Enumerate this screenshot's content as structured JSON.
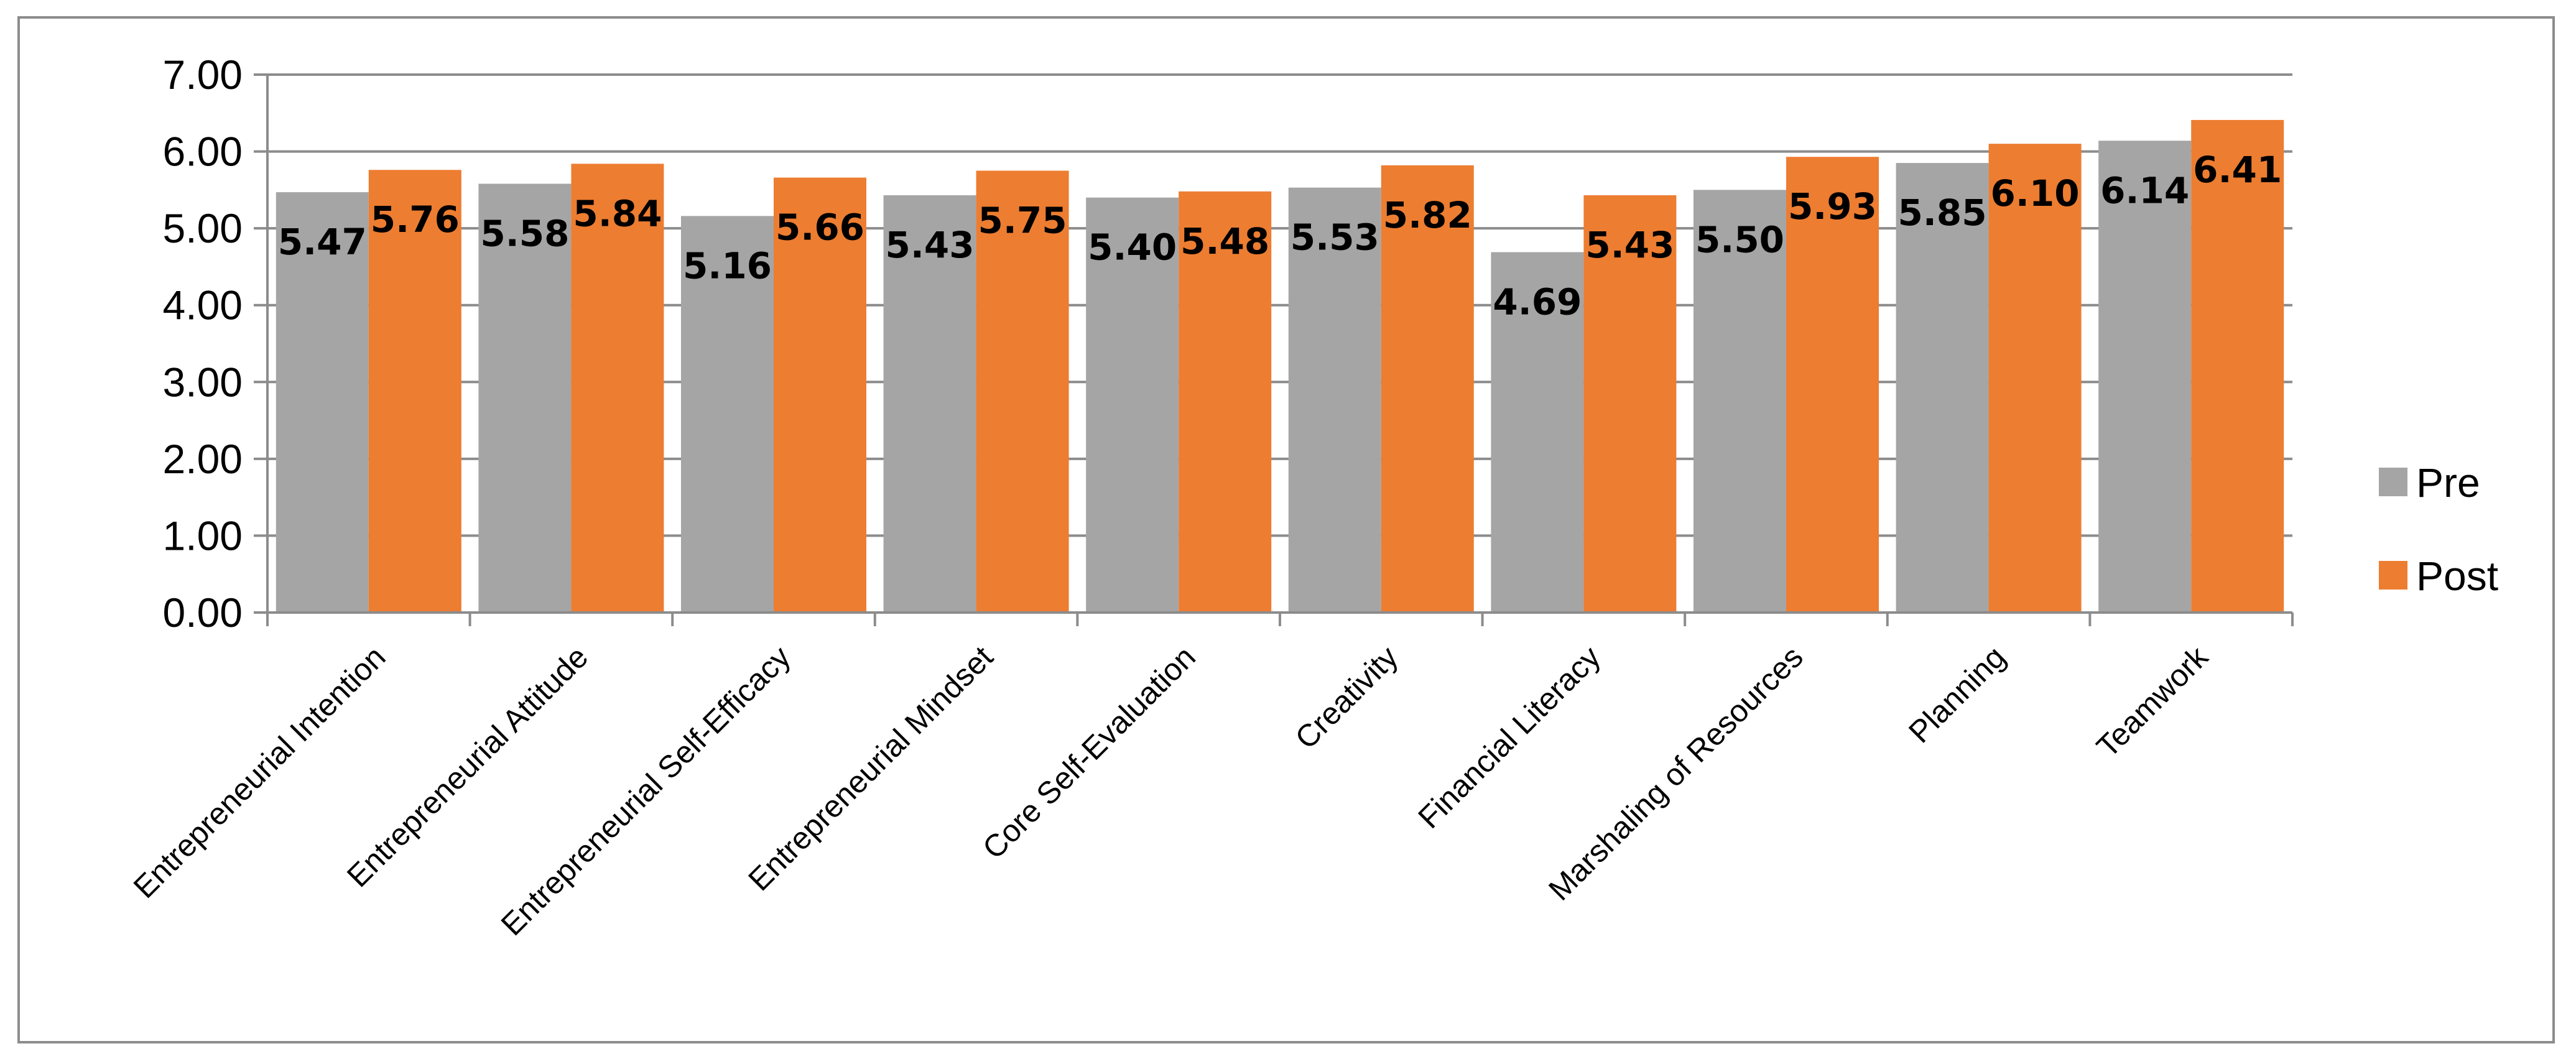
{
  "chart_data": {
    "type": "bar",
    "title": "",
    "xlabel": "",
    "ylabel": "",
    "ylim": [
      0,
      7
    ],
    "yticks": [
      "0.00",
      "1.00",
      "2.00",
      "3.00",
      "4.00",
      "5.00",
      "6.00",
      "7.00"
    ],
    "grid": true,
    "legend_position": "right",
    "categories": [
      "Entrepreneurial Intention",
      "Entrepreneurial Attitude",
      "Entrepreneurial Self-Efficacy",
      "Entrepreneurial Mindset",
      "Core Self-Evaluation",
      "Creativity",
      "Financial Literacy",
      "Marshaling of Resources",
      "Planning",
      "Teamwork"
    ],
    "series": [
      {
        "name": "Pre",
        "color": "#a5a5a5",
        "values": [
          5.47,
          5.58,
          5.16,
          5.43,
          5.4,
          5.53,
          4.69,
          5.5,
          5.85,
          6.14
        ],
        "labels": [
          "5.47",
          "5.58",
          "5.16",
          "5.43",
          "5.40",
          "5.53",
          "4.69",
          "5.50",
          "5.85",
          "6.14"
        ]
      },
      {
        "name": "Post",
        "color": "#ed7d31",
        "values": [
          5.76,
          5.84,
          5.66,
          5.75,
          5.48,
          5.82,
          5.43,
          5.93,
          6.1,
          6.41
        ],
        "labels": [
          "5.76",
          "5.84",
          "5.66",
          "5.75",
          "5.48",
          "5.82",
          "5.43",
          "5.93",
          "6.10",
          "6.41"
        ]
      }
    ],
    "gridline_color": "#8c8c8c",
    "axis_color": "#8c8c8c"
  }
}
